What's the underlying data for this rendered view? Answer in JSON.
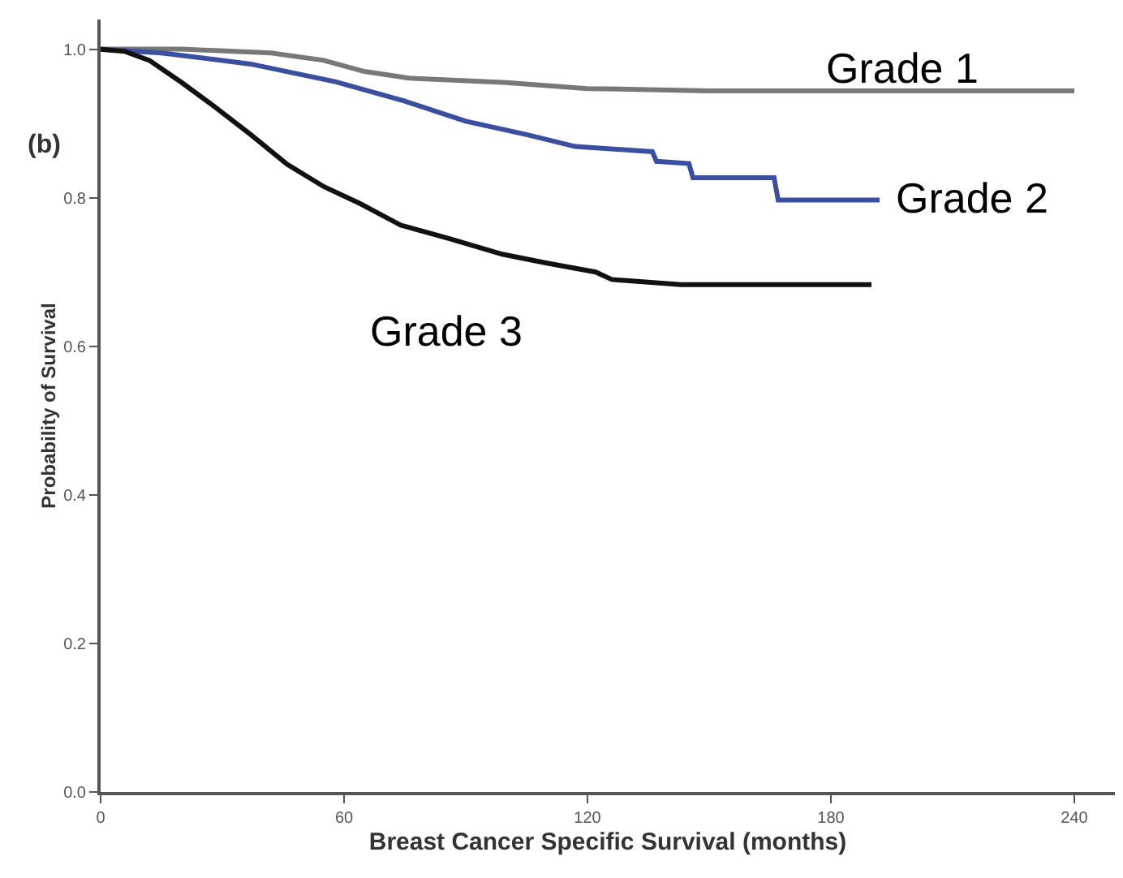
{
  "chart_data": {
    "type": "line",
    "xlabel": "Breast Cancer Specific Survival (months)",
    "ylabel": "Probability of Survival",
    "xlim": [
      0,
      250
    ],
    "xticks": [
      0,
      60,
      120,
      180,
      240
    ],
    "ylim": [
      0,
      1.04
    ],
    "yticks": [
      {
        "value": 0,
        "label": "0.0"
      },
      0.2,
      0.4,
      0.6,
      0.8,
      {
        "value": 1,
        "label": "1.0"
      }
    ],
    "legend": false,
    "marker": "none",
    "line_style": "solid",
    "annotations": [
      "(b)"
    ],
    "series": [
      {
        "name": "Grade 1",
        "color": "#787878",
        "x": [
          0,
          20,
          42,
          55,
          65,
          76,
          100,
          120,
          150,
          240
        ],
        "values": [
          1.0,
          1.0,
          0.995,
          0.985,
          0.97,
          0.961,
          0.955,
          0.947,
          0.944,
          0.944
        ]
      },
      {
        "name": "Grade 2",
        "color": "#3a4fa0",
        "x": [
          0,
          15,
          37,
          58,
          75,
          90,
          105,
          117,
          136,
          137,
          145,
          146,
          166,
          167,
          192
        ],
        "values": [
          1.0,
          0.995,
          0.98,
          0.956,
          0.93,
          0.903,
          0.885,
          0.869,
          0.862,
          0.849,
          0.846,
          0.827,
          0.827,
          0.797,
          0.797
        ]
      },
      {
        "name": "Grade 3",
        "color": "#111111",
        "x": [
          0,
          6,
          12,
          20,
          28,
          37,
          46,
          55,
          64,
          74,
          86,
          99,
          110,
          122,
          126,
          143,
          190
        ],
        "values": [
          1.0,
          0.997,
          0.985,
          0.955,
          0.923,
          0.885,
          0.845,
          0.815,
          0.792,
          0.763,
          0.745,
          0.724,
          0.712,
          0.7,
          0.69,
          0.683,
          0.683
        ]
      }
    ]
  }
}
